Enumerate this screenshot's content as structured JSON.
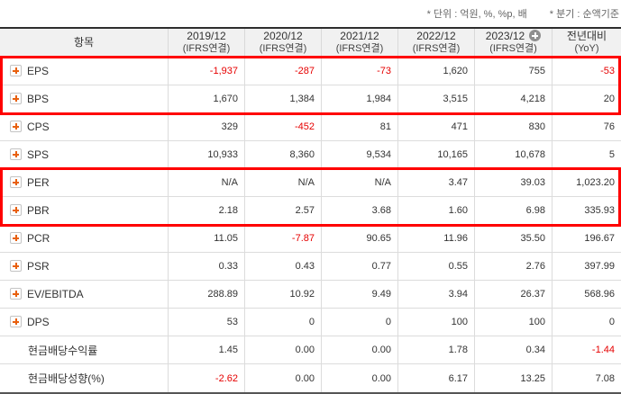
{
  "notes": {
    "unit": "* 단위 : 억원, %, %p, 배",
    "basis": "* 분기 : 순액기준"
  },
  "colors": {
    "negative_value": "#e60000",
    "highlight_border": "#ff0000",
    "plus_icon_accent": "#e8600e",
    "header_bg": "#f1f1f1"
  },
  "table": {
    "header": {
      "item_label": "항목",
      "columns": [
        {
          "period": "2019/12",
          "standard": "(IFRS연결)"
        },
        {
          "period": "2020/12",
          "standard": "(IFRS연결)"
        },
        {
          "period": "2021/12",
          "standard": "(IFRS연결)"
        },
        {
          "period": "2022/12",
          "standard": "(IFRS연결)"
        },
        {
          "period": "2023/12",
          "standard": "(IFRS연결)",
          "has_plus_icon": true
        }
      ],
      "yoy_label": "전년대비",
      "yoy_sub": "(YoY)"
    },
    "rows": [
      {
        "label": "EPS",
        "has_icon": true,
        "values": [
          "-1,937",
          "-287",
          "-73",
          "1,620",
          "755",
          "-53"
        ]
      },
      {
        "label": "BPS",
        "has_icon": true,
        "values": [
          "1,670",
          "1,384",
          "1,984",
          "3,515",
          "4,218",
          "20"
        ]
      },
      {
        "label": "CPS",
        "has_icon": true,
        "values": [
          "329",
          "-452",
          "81",
          "471",
          "830",
          "76"
        ]
      },
      {
        "label": "SPS",
        "has_icon": true,
        "values": [
          "10,933",
          "8,360",
          "9,534",
          "10,165",
          "10,678",
          "5"
        ]
      },
      {
        "label": "PER",
        "has_icon": true,
        "values": [
          "N/A",
          "N/A",
          "N/A",
          "3.47",
          "39.03",
          "1,023.20"
        ]
      },
      {
        "label": "PBR",
        "has_icon": true,
        "values": [
          "2.18",
          "2.57",
          "3.68",
          "1.60",
          "6.98",
          "335.93"
        ]
      },
      {
        "label": "PCR",
        "has_icon": true,
        "values": [
          "11.05",
          "-7.87",
          "90.65",
          "11.96",
          "35.50",
          "196.67"
        ]
      },
      {
        "label": "PSR",
        "has_icon": true,
        "values": [
          "0.33",
          "0.43",
          "0.77",
          "0.55",
          "2.76",
          "397.99"
        ]
      },
      {
        "label": "EV/EBITDA",
        "has_icon": true,
        "values": [
          "288.89",
          "10.92",
          "9.49",
          "3.94",
          "26.37",
          "568.96"
        ]
      },
      {
        "label": "DPS",
        "has_icon": true,
        "values": [
          "53",
          "0",
          "0",
          "100",
          "100",
          "0"
        ]
      },
      {
        "label": "현금배당수익률",
        "has_icon": false,
        "values": [
          "1.45",
          "0.00",
          "0.00",
          "1.78",
          "0.34",
          "-1.44"
        ]
      },
      {
        "label": "현금배당성향(%)",
        "has_icon": false,
        "values": [
          "-2.62",
          "0.00",
          "0.00",
          "6.17",
          "13.25",
          "7.08"
        ]
      }
    ],
    "highlights": [
      {
        "rows": [
          "EPS",
          "BPS"
        ],
        "start": 0,
        "span": 2
      },
      {
        "rows": [
          "PER",
          "PBR"
        ],
        "start": 4,
        "span": 2
      }
    ]
  }
}
